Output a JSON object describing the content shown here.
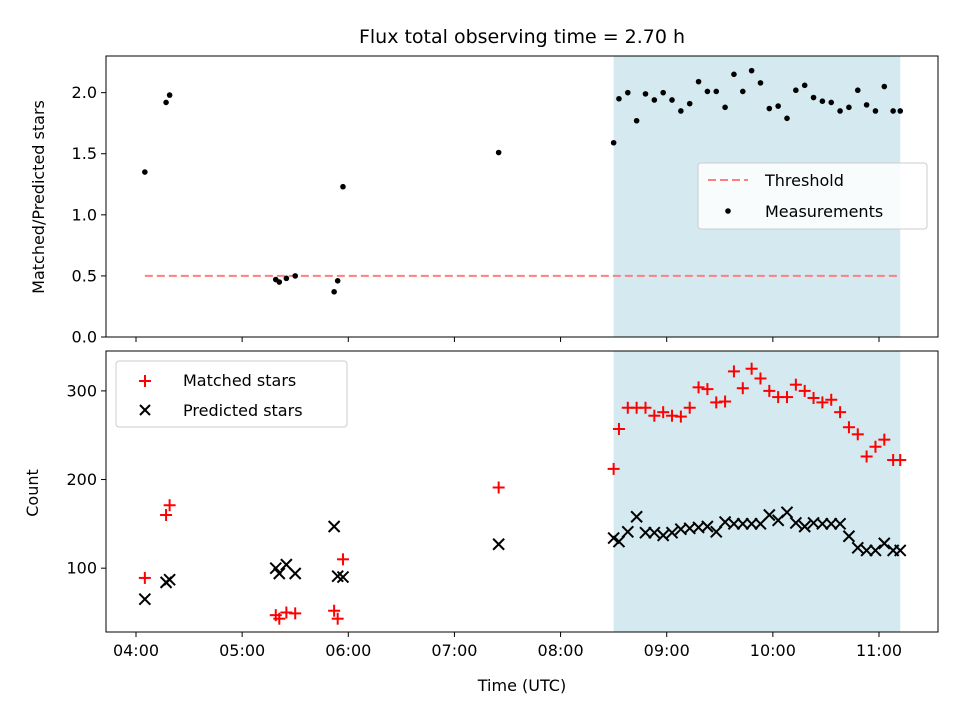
{
  "chart_data": {
    "title": "Flux total observing time = 2.70 h",
    "type": "scatter",
    "xlabel": "Time (UTC)",
    "x_ticks": [
      "04:00",
      "05:00",
      "06:00",
      "07:00",
      "08:00",
      "09:00",
      "10:00",
      "11:00"
    ],
    "highlight_span": {
      "start": "08:30",
      "end": "11:12",
      "color": "#d4eaf0"
    },
    "panels": [
      {
        "name": "ratio",
        "ylabel": "Matched/Predicted stars",
        "ylim": [
          0,
          2.3
        ],
        "yticks": [
          "0.0",
          "0.5",
          "1.0",
          "1.5",
          "2.0"
        ],
        "legend": {
          "placement": "center-right",
          "entries": [
            "Threshold",
            "Measurements"
          ]
        },
        "series": [
          {
            "name": "Threshold",
            "type": "line",
            "style": "dashed",
            "color": "#ff7f7f",
            "x": [
              "04:05",
              "11:12"
            ],
            "y": [
              0.5,
              0.5
            ]
          },
          {
            "name": "Measurements",
            "type": "scatter",
            "marker": "dot",
            "color": "#000000",
            "x": [
              "04:05",
              "04:17",
              "04:19",
              "05:19",
              "05:21",
              "05:25",
              "05:30",
              "05:52",
              "05:54",
              "05:57",
              "07:25",
              "08:30",
              "08:33",
              "08:38",
              "08:43",
              "08:48",
              "08:53",
              "08:58",
              "09:03",
              "09:08",
              "09:13",
              "09:18",
              "09:23",
              "09:28",
              "09:33",
              "09:38",
              "09:43",
              "09:48",
              "09:53",
              "09:58",
              "10:03",
              "10:08",
              "10:13",
              "10:18",
              "10:23",
              "10:28",
              "10:33",
              "10:38",
              "10:43",
              "10:48",
              "10:53",
              "10:58",
              "11:03",
              "11:08",
              "11:12"
            ],
            "y": [
              1.35,
              1.92,
              1.98,
              0.47,
              0.45,
              0.48,
              0.5,
              0.37,
              0.46,
              1.23,
              1.51,
              1.59,
              1.95,
              2.0,
              1.77,
              1.99,
              1.94,
              2.0,
              1.94,
              1.85,
              1.91,
              2.09,
              2.01,
              2.01,
              1.88,
              2.15,
              2.01,
              2.18,
              2.08,
              1.87,
              1.89,
              1.79,
              2.02,
              2.06,
              1.96,
              1.93,
              1.92,
              1.85,
              1.88,
              2.02,
              1.9,
              1.85,
              2.05,
              1.85,
              1.85
            ]
          }
        ]
      },
      {
        "name": "counts",
        "ylabel": "Count",
        "ylim": [
          28,
          345
        ],
        "yticks": [
          "100",
          "200",
          "300"
        ],
        "legend": {
          "placement": "top-left",
          "entries": [
            "Matched stars",
            "Predicted stars"
          ]
        },
        "series": [
          {
            "name": "Matched stars",
            "type": "scatter",
            "marker": "plus",
            "color": "#ff0000",
            "x": [
              "04:05",
              "04:17",
              "04:19",
              "05:19",
              "05:21",
              "05:25",
              "05:30",
              "05:52",
              "05:54",
              "05:57",
              "07:25",
              "08:30",
              "08:33",
              "08:38",
              "08:43",
              "08:48",
              "08:53",
              "08:58",
              "09:03",
              "09:08",
              "09:13",
              "09:18",
              "09:23",
              "09:28",
              "09:33",
              "09:38",
              "09:43",
              "09:48",
              "09:53",
              "09:58",
              "10:03",
              "10:08",
              "10:13",
              "10:18",
              "10:23",
              "10:28",
              "10:33",
              "10:38",
              "10:43",
              "10:48",
              "10:53",
              "10:58",
              "11:03",
              "11:08",
              "11:12"
            ],
            "y": [
              89,
              160,
              171,
              47,
              43,
              50,
              49,
              52,
              43,
              110,
              191,
              212,
              257,
              281,
              281,
              281,
              272,
              276,
              272,
              271,
              281,
              304,
              302,
              287,
              288,
              322,
              303,
              325,
              314,
              300,
              293,
              293,
              307,
              300,
              292,
              287,
              290,
              276,
              259,
              251,
              226,
              237,
              245,
              222,
              222
            ]
          },
          {
            "name": "Predicted stars",
            "type": "scatter",
            "marker": "x",
            "color": "#000000",
            "x": [
              "04:05",
              "04:17",
              "04:19",
              "05:19",
              "05:21",
              "05:25",
              "05:30",
              "05:52",
              "05:54",
              "05:57",
              "07:25",
              "08:30",
              "08:33",
              "08:38",
              "08:43",
              "08:48",
              "08:53",
              "08:58",
              "09:03",
              "09:08",
              "09:13",
              "09:18",
              "09:23",
              "09:28",
              "09:33",
              "09:38",
              "09:43",
              "09:48",
              "09:53",
              "09:58",
              "10:03",
              "10:08",
              "10:13",
              "10:18",
              "10:23",
              "10:28",
              "10:33",
              "10:38",
              "10:43",
              "10:48",
              "10:53",
              "10:58",
              "11:03",
              "11:08",
              "11:12"
            ],
            "y": [
              65,
              84,
              87,
              100,
              94,
              104,
              94,
              147,
              91,
              90,
              127,
              134,
              130,
              141,
              158,
              140,
              140,
              137,
              140,
              144,
              145,
              146,
              147,
              141,
              152,
              150,
              150,
              150,
              150,
              160,
              154,
              163,
              151,
              147,
              151,
              150,
              150,
              150,
              136,
              123,
              120,
              120,
              128,
              120,
              120
            ]
          }
        ]
      }
    ]
  }
}
